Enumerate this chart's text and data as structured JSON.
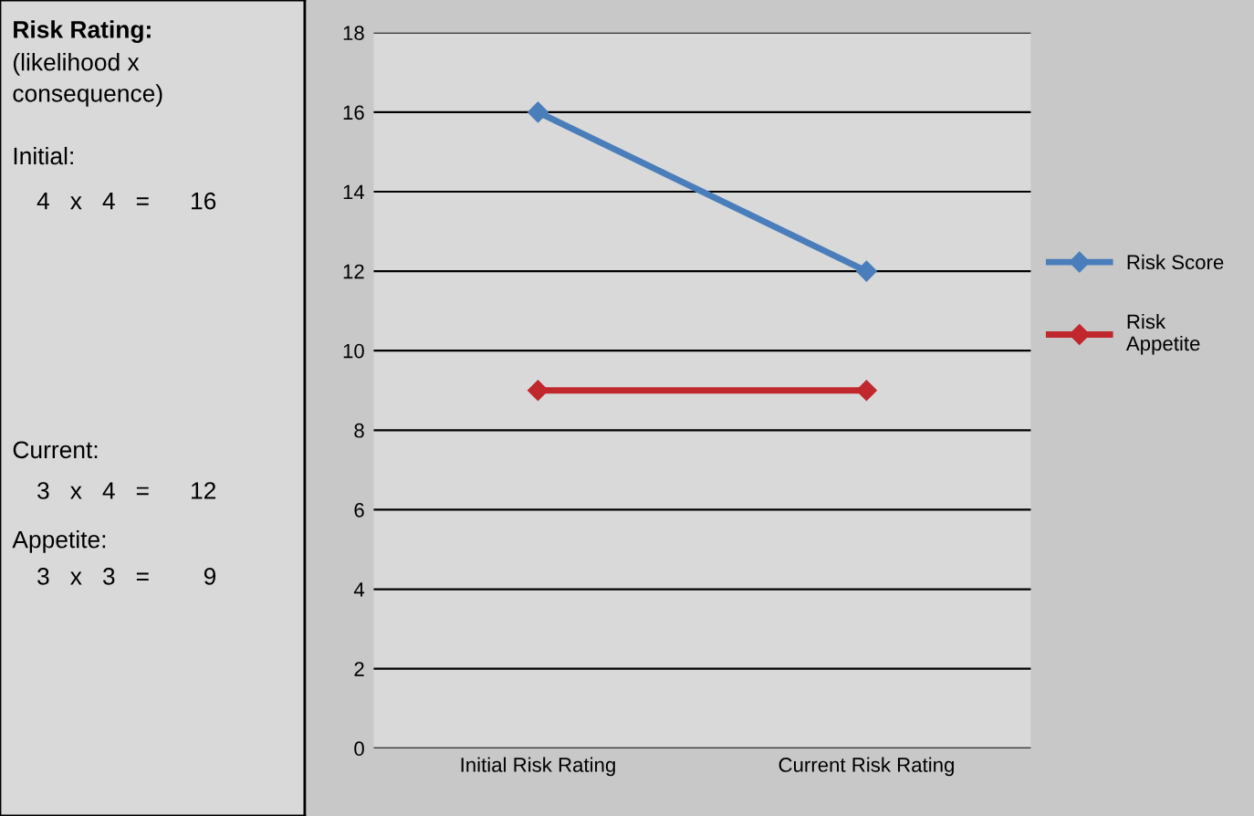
{
  "chart_data": [
    {
      "type": "other",
      "annotations": [
        "Risk Rating:",
        "(likelihood x\nconsequence)",
        "Initial:",
        "4   x   4   =      16",
        "Current:",
        "3   x   4   =      12",
        "Appetite:",
        "3   x   3   =        9"
      ]
    },
    {
      "type": "line",
      "categories": [
        "Initial Risk Rating",
        "Current Risk Rating"
      ],
      "series": [
        {
          "name": "Risk Score",
          "color": "#4a7ebb",
          "values": [
            16,
            12
          ]
        },
        {
          "name": "Risk\nAppetite",
          "color": "#c0282d",
          "values": [
            9,
            9
          ]
        }
      ],
      "ylim": [
        0,
        18
      ],
      "yticks": [
        0,
        2,
        4,
        6,
        8,
        10,
        12,
        14,
        16,
        18
      ],
      "grid": "y",
      "legend": "right",
      "marker": "diamond",
      "line_style": "solid"
    }
  ]
}
